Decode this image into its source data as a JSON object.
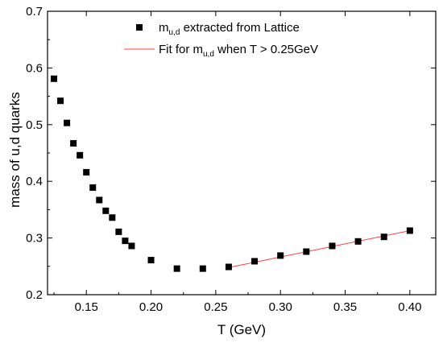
{
  "chart_data": {
    "type": "scatter",
    "title": "",
    "xlabel": "T (GeV)",
    "ylabel": "mass of u,d quarks",
    "xlim": [
      0.12,
      0.42
    ],
    "ylim": [
      0.2,
      0.7
    ],
    "x_ticks": [
      0.15,
      0.2,
      0.25,
      0.3,
      0.35,
      0.4
    ],
    "x_tick_labels": [
      "0.15",
      "0.20",
      "0.25",
      "0.30",
      "0.35",
      "0.40"
    ],
    "y_ticks": [
      0.2,
      0.3,
      0.4,
      0.5,
      0.6,
      0.7
    ],
    "y_tick_labels": [
      "0.2",
      "0.3",
      "0.4",
      "0.5",
      "0.6",
      "0.7"
    ],
    "grid": false,
    "legend_position": "top-center",
    "series": [
      {
        "name": "m_{u,d} extracted from Lattice",
        "legend_main": "m",
        "legend_sub": "u,d",
        "legend_rest": " extracted from Lattice",
        "kind": "scatter",
        "marker": "square",
        "color": "#000000",
        "x": [
          0.125,
          0.13,
          0.135,
          0.14,
          0.145,
          0.15,
          0.155,
          0.16,
          0.165,
          0.17,
          0.175,
          0.18,
          0.185,
          0.2,
          0.22,
          0.24,
          0.26,
          0.28,
          0.3,
          0.32,
          0.34,
          0.36,
          0.38,
          0.4
        ],
        "y": [
          0.581,
          0.542,
          0.503,
          0.467,
          0.446,
          0.416,
          0.389,
          0.367,
          0.348,
          0.336,
          0.311,
          0.295,
          0.286,
          0.261,
          0.246,
          0.246,
          0.249,
          0.259,
          0.269,
          0.276,
          0.286,
          0.294,
          0.302,
          0.313
        ]
      },
      {
        "name": "Fit for m_{u,d} when T > 0.25GeV",
        "legend_main": "Fit for m",
        "legend_sub": "u,d",
        "legend_rest": " when T > 0.25GeV",
        "kind": "line",
        "color": "#ff4040",
        "x": [
          0.26,
          0.4
        ],
        "y": [
          0.248,
          0.313
        ]
      }
    ]
  }
}
